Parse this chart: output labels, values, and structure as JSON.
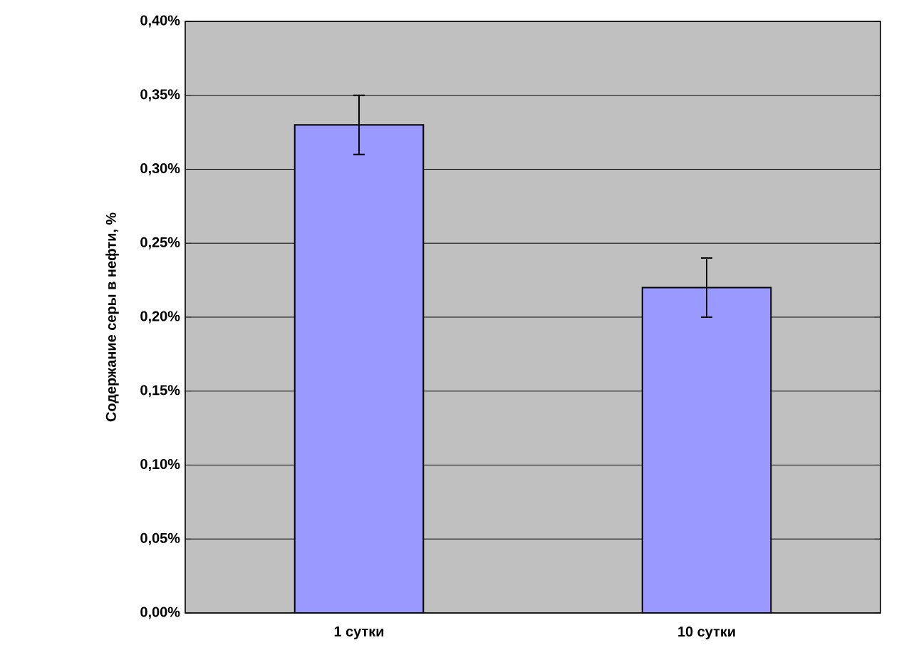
{
  "chart_data": {
    "type": "bar",
    "ylabel": "Содержание серы в нефти, %",
    "categories": [
      "1 сутки",
      "10 сутки"
    ],
    "series": [
      {
        "color": "#9999ff",
        "values": [
          0.33,
          0.22
        ],
        "errors": [
          0.02,
          0.02
        ]
      }
    ],
    "ylim": [
      0,
      0.4
    ],
    "yticks": [
      {
        "value": 0,
        "label": "0,00%"
      },
      {
        "value": 0.05,
        "label": "0,05%"
      },
      {
        "value": 0.1,
        "label": "0,10%"
      },
      {
        "value": 0.15,
        "label": "0,15%"
      },
      {
        "value": 0.2,
        "label": "0,20%"
      },
      {
        "value": 0.25,
        "label": "0,25%"
      },
      {
        "value": 0.3,
        "label": "0,30%"
      },
      {
        "value": 0.35,
        "label": "0,35%"
      },
      {
        "value": 0.4,
        "label": "0,40%"
      }
    ],
    "grid": "y"
  }
}
